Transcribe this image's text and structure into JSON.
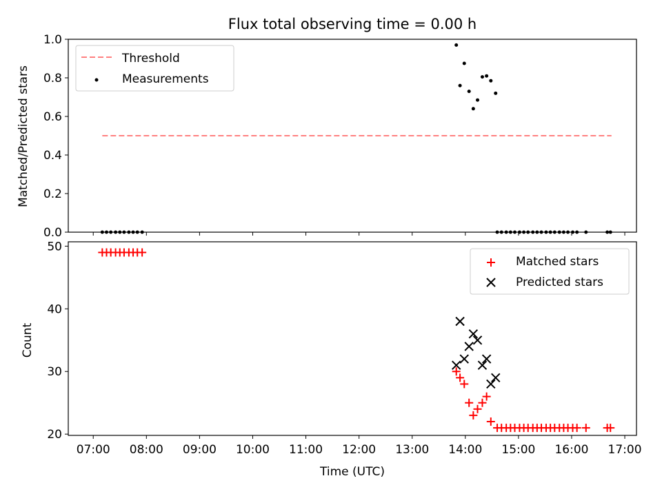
{
  "chart_data": [
    {
      "type": "scatter",
      "title": "Flux total observing time = 0.00 h",
      "xlabel": "",
      "ylabel": "Matched/Predicted stars",
      "ylim": [
        0,
        1.0
      ],
      "yticks": [
        "0.0",
        "0.2",
        "0.4",
        "0.6",
        "0.8",
        "1.0"
      ],
      "ytick_values": [
        0,
        0.2,
        0.4,
        0.6,
        0.8,
        1.0
      ],
      "legend_position": "upper-left",
      "series": [
        {
          "name": "Threshold",
          "kind": "dashed-line",
          "color": "#ff7f7f",
          "x": [
            7.17,
            16.75
          ],
          "y": [
            0.5,
            0.5
          ]
        },
        {
          "name": "Measurements",
          "kind": "scatter-dot",
          "color": "#000000",
          "x": [
            7.17,
            7.25,
            7.33,
            7.42,
            7.5,
            7.58,
            7.67,
            7.75,
            7.83,
            7.92,
            13.83,
            13.9,
            13.98,
            14.07,
            14.15,
            14.23,
            14.32,
            14.4,
            14.48,
            14.57,
            14.6,
            14.68,
            14.77,
            14.85,
            14.93,
            15.02,
            15.1,
            15.18,
            15.27,
            15.35,
            15.43,
            15.52,
            15.6,
            15.68,
            15.77,
            15.85,
            15.93,
            16.02,
            16.1,
            16.27,
            16.67,
            16.73
          ],
          "y": [
            0,
            0,
            0,
            0,
            0,
            0,
            0,
            0,
            0,
            0,
            0.97,
            0.76,
            0.875,
            0.73,
            0.64,
            0.685,
            0.805,
            0.81,
            0.785,
            0.72,
            0,
            0,
            0,
            0,
            0,
            0,
            0,
            0,
            0,
            0,
            0,
            0,
            0,
            0,
            0,
            0,
            0,
            0,
            0,
            0,
            0,
            0
          ]
        }
      ]
    },
    {
      "type": "scatter",
      "title": "",
      "xlabel": "Time (UTC)",
      "ylabel": "Count",
      "ylim": [
        19.8,
        50.7
      ],
      "yticks": [
        "20",
        "30",
        "40",
        "50"
      ],
      "ytick_values": [
        20,
        30,
        40,
        50
      ],
      "legend_position": "upper-right",
      "series": [
        {
          "name": "Matched stars",
          "kind": "plus",
          "color": "#ff0000",
          "x": [
            7.17,
            7.25,
            7.33,
            7.42,
            7.5,
            7.58,
            7.67,
            7.75,
            7.83,
            7.92,
            13.83,
            13.9,
            13.98,
            14.07,
            14.15,
            14.23,
            14.32,
            14.4,
            14.48,
            14.6,
            14.68,
            14.77,
            14.85,
            14.93,
            15.02,
            15.1,
            15.18,
            15.27,
            15.35,
            15.43,
            15.52,
            15.6,
            15.68,
            15.77,
            15.85,
            15.93,
            16.02,
            16.1,
            16.27,
            16.67,
            16.73
          ],
          "y": [
            49,
            49,
            49,
            49,
            49,
            49,
            49,
            49,
            49,
            49,
            30,
            29,
            28,
            25,
            23,
            24,
            25,
            26,
            22,
            21,
            21,
            21,
            21,
            21,
            21,
            21,
            21,
            21,
            21,
            21,
            21,
            21,
            21,
            21,
            21,
            21,
            21,
            21,
            21,
            21,
            21
          ]
        },
        {
          "name": "Predicted stars",
          "kind": "x",
          "color": "#000000",
          "x": [
            13.83,
            13.9,
            13.98,
            14.07,
            14.15,
            14.23,
            14.32,
            14.4,
            14.48,
            14.57
          ],
          "y": [
            31,
            38,
            32,
            34,
            36,
            35,
            31,
            32,
            28,
            29
          ]
        }
      ]
    }
  ],
  "x_axis": {
    "range": [
      6.53,
      17.22
    ],
    "ticks": [
      "07:00",
      "08:00",
      "09:00",
      "10:00",
      "11:00",
      "12:00",
      "13:00",
      "14:00",
      "15:00",
      "16:00",
      "17:00"
    ],
    "tick_values": [
      7,
      8,
      9,
      10,
      11,
      12,
      13,
      14,
      15,
      16,
      17
    ]
  }
}
